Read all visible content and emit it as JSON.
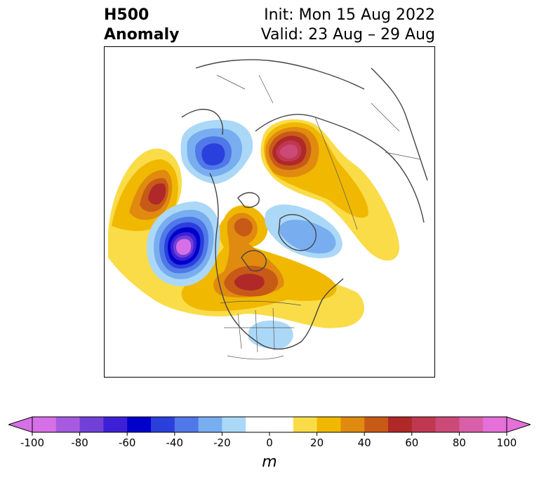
{
  "title": {
    "variable_line1": "H500",
    "variable_line2": "Anomaly",
    "init_line": "Init: Mon 15 Aug 2022",
    "valid_line": "Valid: 23 Aug – 29 Aug"
  },
  "colorbar": {
    "unit": "m",
    "min": -100,
    "max": 100,
    "step": 10,
    "tick_values": [
      -100,
      -80,
      -60,
      -40,
      -20,
      0,
      20,
      40,
      60,
      80,
      100
    ],
    "tick_labels": [
      "-100",
      "-80",
      "-60",
      "-40",
      "-20",
      "0",
      "20",
      "40",
      "60",
      "80",
      "100"
    ],
    "colors": [
      "#d670e6",
      "#a55ae0",
      "#7040d8",
      "#3d20d6",
      "#0000cc",
      "#2a40dc",
      "#5078e8",
      "#78aef0",
      "#acd8f8",
      "#ffffff",
      "#ffffff",
      "#f9dc48",
      "#f0b800",
      "#e08a10",
      "#c85a18",
      "#b02828",
      "#c03850",
      "#cc4a78",
      "#d860a8",
      "#e470d8"
    ],
    "extend": "both",
    "under_color": "#d670e6",
    "over_color": "#e470d8"
  },
  "map": {
    "projection": "polar-stereographic",
    "region": "Northern Hemisphere / North America",
    "anomaly_centers": [
      {
        "sign": "positive",
        "peak": 60
      },
      {
        "sign": "negative",
        "peak": -60
      },
      {
        "sign": "negative",
        "peak": -100
      },
      {
        "sign": "positive",
        "peak": 80
      },
      {
        "sign": "positive",
        "peak": 50
      },
      {
        "sign": "positive",
        "peak": 60
      },
      {
        "sign": "negative",
        "peak": -30
      },
      {
        "sign": "negative",
        "peak": -20
      }
    ]
  }
}
